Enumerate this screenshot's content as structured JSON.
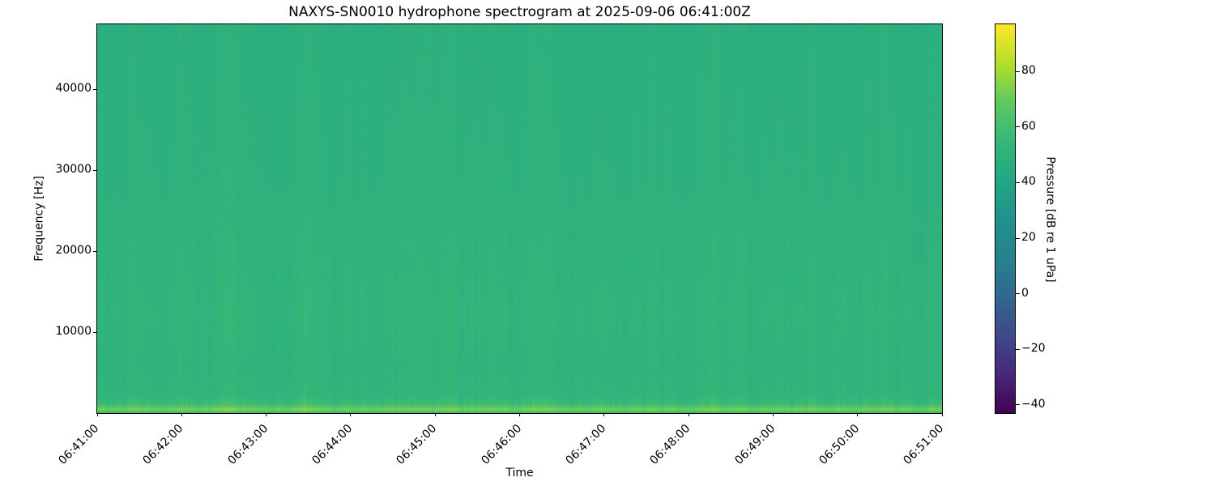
{
  "chart_data": {
    "type": "heatmap",
    "subtype": "spectrogram",
    "title": "NAXYS-SN0010 hydrophone spectrogram at 2025-09-06 06:41:00Z",
    "xlabel": "Time",
    "ylabel": "Frequency [Hz]",
    "x_tick_labels": [
      "06:41:00",
      "06:42:00",
      "06:43:00",
      "06:44:00",
      "06:45:00",
      "06:46:00",
      "06:47:00",
      "06:48:00",
      "06:49:00",
      "06:50:00",
      "06:51:00"
    ],
    "x_range": {
      "start": "06:41:00",
      "end": "06:51:00",
      "tick_interval_s": 60
    },
    "y_ticks_hz": [
      10000,
      20000,
      30000,
      40000
    ],
    "y_tick_labels": [
      "10000",
      "20000",
      "30000",
      "40000"
    ],
    "y_range_hz": [
      0,
      48000
    ],
    "grid": false,
    "colorbar": {
      "label": "Pressure [dB re 1 uPa]",
      "ticks": [
        80,
        60,
        40,
        20,
        0,
        -20,
        -40
      ],
      "tick_labels": [
        "80",
        "60",
        "40",
        "20",
        "0",
        "−20",
        "−40"
      ],
      "range_db": [
        -43,
        97
      ],
      "colormap": "viridis",
      "position": "right"
    },
    "freq_profile_db": [
      [
        0,
        55
      ],
      [
        100,
        60
      ],
      [
        200,
        68
      ],
      [
        300,
        71
      ],
      [
        500,
        71.5
      ],
      [
        700,
        66
      ],
      [
        900,
        61
      ],
      [
        1200,
        57
      ],
      [
        1800,
        54
      ],
      [
        2500,
        52.5
      ],
      [
        4000,
        52
      ],
      [
        6000,
        51.5
      ],
      [
        9000,
        52
      ],
      [
        12000,
        52.5
      ],
      [
        15000,
        52
      ],
      [
        20000,
        51
      ],
      [
        24000,
        50.5
      ],
      [
        30000,
        49.5
      ],
      [
        38000,
        49
      ],
      [
        48000,
        48.5
      ]
    ],
    "texture": {
      "seed": 42,
      "column_noise_db": 1.2,
      "pixel_noise_db": 0.5,
      "band_noise_boost": [
        [
          0,
          2000,
          2.0
        ],
        [
          2000,
          22000,
          1.5
        ],
        [
          22000,
          48000,
          0.9
        ]
      ]
    },
    "value_summary": "Broadband level ~49-53 dB re 1 uPa across 2-48 kHz with fine vertical time striping of ~2 dB; bright low-frequency band below ~1.5 kHz peaking ~71 dB near 300-500 Hz."
  },
  "colors": {
    "background": "#ffffff",
    "text": "#000000",
    "spine": "#000000",
    "viridis_stops": [
      [
        0.0,
        "#440154"
      ],
      [
        0.1,
        "#482878"
      ],
      [
        0.2,
        "#3e4a89"
      ],
      [
        0.3,
        "#31688e"
      ],
      [
        0.4,
        "#26828e"
      ],
      [
        0.5,
        "#21918c"
      ],
      [
        0.6,
        "#22a884"
      ],
      [
        0.7,
        "#35b779"
      ],
      [
        0.8,
        "#5ec962"
      ],
      [
        0.9,
        "#b5de2b"
      ],
      [
        1.0,
        "#fde725"
      ]
    ]
  }
}
